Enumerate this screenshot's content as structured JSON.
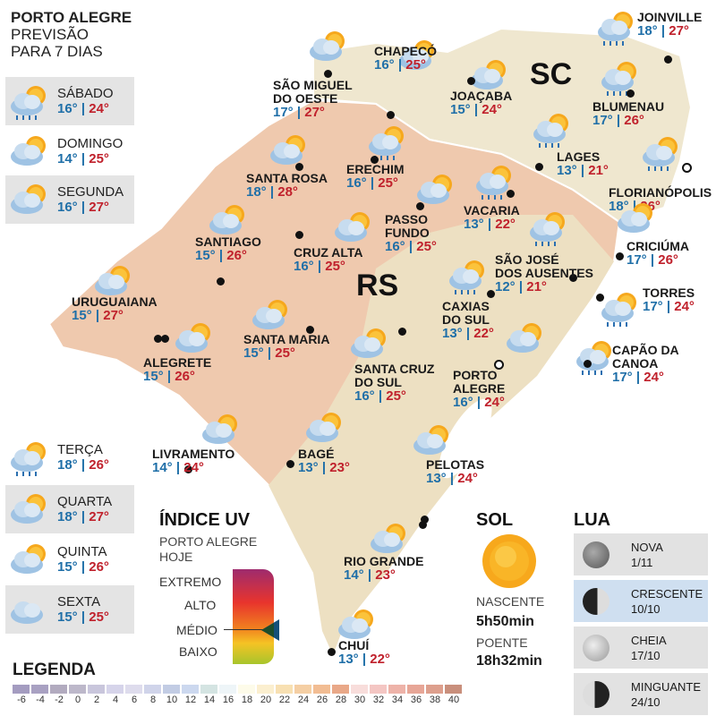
{
  "header": {
    "line1": "PORTO ALEGRE",
    "line2": "PREVISÃO",
    "line3": "PARA 7 DIAS"
  },
  "days": [
    {
      "name": "SÁBADO",
      "min": "16°",
      "max": "24°",
      "icon": "sun-cloud-rain"
    },
    {
      "name": "DOMINGO",
      "min": "14°",
      "max": "25°",
      "icon": "sun-cloud"
    },
    {
      "name": "SEGUNDA",
      "min": "16°",
      "max": "27°",
      "icon": "sun-cloud"
    },
    {
      "name": "TERÇA",
      "min": "18°",
      "max": "26°",
      "icon": "sun-cloud-rain"
    },
    {
      "name": "QUARTA",
      "min": "18°",
      "max": "27°",
      "icon": "sun-cloud"
    },
    {
      "name": "QUINTA",
      "min": "15°",
      "max": "26°",
      "icon": "sun-cloud"
    },
    {
      "name": "SEXTA",
      "min": "15°",
      "max": "25°",
      "icon": "cloud"
    }
  ],
  "states": {
    "rs": "RS",
    "sc": "SC"
  },
  "cities": [
    {
      "name": [
        "SÃO MIGUEL",
        "DO OESTE"
      ],
      "min": "17°",
      "max": "27°",
      "icon": "sun-cloud"
    },
    {
      "name": [
        "CHAPECÓ"
      ],
      "min": "16°",
      "max": "25°",
      "icon": "sun-cloud"
    },
    {
      "name": [
        "JOAÇABA"
      ],
      "min": "15°",
      "max": "24°",
      "icon": "sun-cloud"
    },
    {
      "name": [
        "JOINVILLE"
      ],
      "min": "18°",
      "max": "27°",
      "icon": "sun-cloud-rain"
    },
    {
      "name": [
        "BLUMENAU"
      ],
      "min": "17°",
      "max": "26°",
      "icon": "sun-cloud-rain"
    },
    {
      "name": [
        "LAGES"
      ],
      "min": "13°",
      "max": "21°",
      "icon": "sun-cloud-rain"
    },
    {
      "name": [
        "FLORIANÓPOLIS"
      ],
      "min": "18°",
      "max": "26°",
      "icon": "sun-cloud-rain"
    },
    {
      "name": [
        "ERECHIM"
      ],
      "min": "16°",
      "max": "25°",
      "icon": "sun-cloud-rain"
    },
    {
      "name": [
        "SANTA ROSA"
      ],
      "min": "18°",
      "max": "28°",
      "icon": "sun-cloud"
    },
    {
      "name": [
        "PASSO",
        "FUNDO"
      ],
      "min": "16°",
      "max": "25°",
      "icon": "sun-cloud"
    },
    {
      "name": [
        "VACARIA"
      ],
      "min": "13°",
      "max": "22°",
      "icon": "sun-cloud-rain"
    },
    {
      "name": [
        "SANTIAGO"
      ],
      "min": "15°",
      "max": "26°",
      "icon": "sun-cloud"
    },
    {
      "name": [
        "CRUZ ALTA"
      ],
      "min": "16°",
      "max": "25°",
      "icon": "sun-cloud"
    },
    {
      "name": [
        "CRICIÚMA"
      ],
      "min": "17°",
      "max": "26°",
      "icon": "sun-cloud"
    },
    {
      "name": [
        "SÃO JOSÉ",
        "DOS AUSENTES"
      ],
      "min": "12°",
      "max": "21°",
      "icon": "sun-cloud-rain"
    },
    {
      "name": [
        "URUGUAIANA"
      ],
      "min": "15°",
      "max": "27°",
      "icon": "sun-cloud"
    },
    {
      "name": [
        "CAXIAS",
        "DO SUL"
      ],
      "min": "13°",
      "max": "22°",
      "icon": "sun-cloud-rain"
    },
    {
      "name": [
        "TORRES"
      ],
      "min": "17°",
      "max": "24°",
      "icon": "sun-cloud-rain"
    },
    {
      "name": [
        "SANTA MARIA"
      ],
      "min": "15°",
      "max": "25°",
      "icon": "sun-cloud"
    },
    {
      "name": [
        "ALEGRETE"
      ],
      "min": "15°",
      "max": "26°",
      "icon": "sun-cloud"
    },
    {
      "name": [
        "CAPÃO DA",
        "CANOA"
      ],
      "min": "17°",
      "max": "24°",
      "icon": "sun-cloud-rain"
    },
    {
      "name": [
        "SANTA CRUZ",
        "DO SUL"
      ],
      "min": "16°",
      "max": "25°",
      "icon": "sun-cloud"
    },
    {
      "name": [
        "PORTO",
        "ALEGRE"
      ],
      "min": "16°",
      "max": "24°",
      "icon": "sun-cloud"
    },
    {
      "name": [
        "LIVRAMENTO"
      ],
      "min": "14°",
      "max": "24°",
      "icon": "sun-cloud"
    },
    {
      "name": [
        "BAGÉ"
      ],
      "min": "13°",
      "max": "23°",
      "icon": "sun-cloud"
    },
    {
      "name": [
        "PELOTAS"
      ],
      "min": "13°",
      "max": "24°",
      "icon": "sun-cloud"
    },
    {
      "name": [
        "RIO GRANDE"
      ],
      "min": "14°",
      "max": "23°",
      "icon": "sun-cloud"
    },
    {
      "name": [
        "CHUÍ"
      ],
      "min": "13°",
      "max": "22°",
      "icon": "sun-cloud"
    }
  ],
  "uv": {
    "title": "ÍNDICE UV",
    "subtitle1": "PORTO ALEGRE",
    "subtitle2": "HOJE",
    "levels": [
      "EXTREMO",
      "ALTO",
      "MÉDIO",
      "BAIXO"
    ],
    "current": "MÉDIO"
  },
  "sun": {
    "title": "SOL",
    "rise_label": "NASCENTE",
    "rise": "5h50min",
    "set_label": "POENTE",
    "set": "18h32min"
  },
  "moon": {
    "title": "LUA",
    "phases": [
      {
        "name": "NOVA",
        "date": "1/11"
      },
      {
        "name": "CRESCENTE",
        "date": "10/10",
        "current": true
      },
      {
        "name": "CHEIA",
        "date": "17/10"
      },
      {
        "name": "MINGUANTE",
        "date": "24/10"
      }
    ]
  },
  "legend": {
    "title": "LEGENDA",
    "ticks": [
      "-6",
      "-4",
      "-2",
      "0",
      "2",
      "4",
      "6",
      "8",
      "10",
      "12",
      "14",
      "16",
      "18",
      "20",
      "22",
      "24",
      "26",
      "28",
      "30",
      "32",
      "34",
      "36",
      "38",
      "40"
    ],
    "colors": [
      "#a49cc0",
      "#a9a1c2",
      "#b2abbf",
      "#bdb8ca",
      "#c9c6dc",
      "#d6d4ea",
      "#dedced",
      "#d0d4ea",
      "#c2cce4",
      "#ccd8ef",
      "#d4e4e2",
      "#eef5f8",
      "#fdfbe9",
      "#fbefcf",
      "#f8e0b2",
      "#f5cfa4",
      "#f2bd93",
      "#e9a888",
      "#f8dddb",
      "#f4c6c3",
      "#eeb3a9",
      "#e7a697",
      "#dd9f8d",
      "#c98f7c"
    ]
  }
}
